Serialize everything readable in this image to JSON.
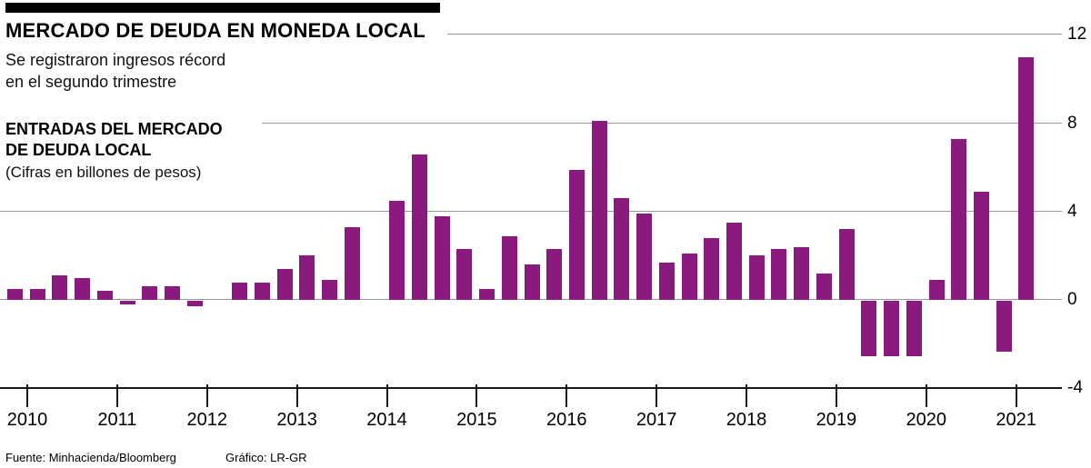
{
  "header": {
    "title": "MERCADO DE DEUDA EN MONEDA LOCAL",
    "subtitle_line1": "Se registraron ingresos récord",
    "subtitle_line2": "en el segundo trimestre",
    "series_title_line1": "ENTRADAS DEL MERCADO",
    "series_title_line2": "DE DEUDA LOCAL",
    "units_note": "(Cifras en billones de pesos)"
  },
  "footer": {
    "source": "Fuente: Minhacienda/Bloomberg",
    "credit": "Gráfico: LR-GR"
  },
  "colors": {
    "bar": "#8a1a7e",
    "grid": "#9a9a9a",
    "axis": "#1a1a1a"
  },
  "chart_data": {
    "type": "bar",
    "title": "ENTRADAS DEL MERCADO DE DEUDA LOCAL",
    "subtitle": "Se registraron ingresos récord en el segundo trimestre",
    "units": "Cifras en billones de pesos",
    "bar_color": "#8a1a7e",
    "grid": true,
    "ylim": [
      -4,
      12
    ],
    "yticks": [
      12,
      8,
      4,
      0,
      -4
    ],
    "year_labels": [
      "2010",
      "2011",
      "2012",
      "2013",
      "2014",
      "2015",
      "2016",
      "2017",
      "2018",
      "2019",
      "2020",
      "2021"
    ],
    "quarters": [
      "2010 Q1",
      "2010 Q2",
      "2010 Q3",
      "2010 Q4",
      "2011 Q1",
      "2011 Q2",
      "2011 Q3",
      "2011 Q4",
      "2012 Q1",
      "2012 Q2",
      "2012 Q3",
      "2012 Q4",
      "2013 Q1",
      "2013 Q2",
      "2013 Q3",
      "2013 Q4",
      "2014 Q1",
      "2014 Q2",
      "2014 Q3",
      "2014 Q4",
      "2015 Q1",
      "2015 Q2",
      "2015 Q3",
      "2015 Q4",
      "2016 Q1",
      "2016 Q2",
      "2016 Q3",
      "2016 Q4",
      "2017 Q1",
      "2017 Q2",
      "2017 Q3",
      "2017 Q4",
      "2018 Q1",
      "2018 Q2",
      "2018 Q3",
      "2018 Q4",
      "2019 Q1",
      "2019 Q2",
      "2019 Q3",
      "2019 Q4",
      "2020 Q1",
      "2020 Q2",
      "2020 Q3",
      "2020 Q4",
      "2021 Q1",
      "2021 Q2"
    ],
    "values": [
      0.5,
      0.5,
      1.1,
      1.0,
      0.4,
      -0.15,
      0.6,
      0.6,
      -0.25,
      0,
      0.8,
      0.8,
      1.4,
      2.0,
      0.9,
      3.3,
      0,
      4.5,
      6.6,
      3.8,
      2.3,
      0.5,
      2.9,
      1.6,
      2.3,
      5.9,
      8.1,
      4.6,
      3.9,
      1.7,
      2.1,
      2.8,
      3.5,
      2.0,
      2.3,
      2.4,
      1.2,
      3.2,
      -2.5,
      -2.5,
      -2.5,
      0.9,
      7.3,
      4.9,
      -2.3,
      11.0
    ]
  }
}
